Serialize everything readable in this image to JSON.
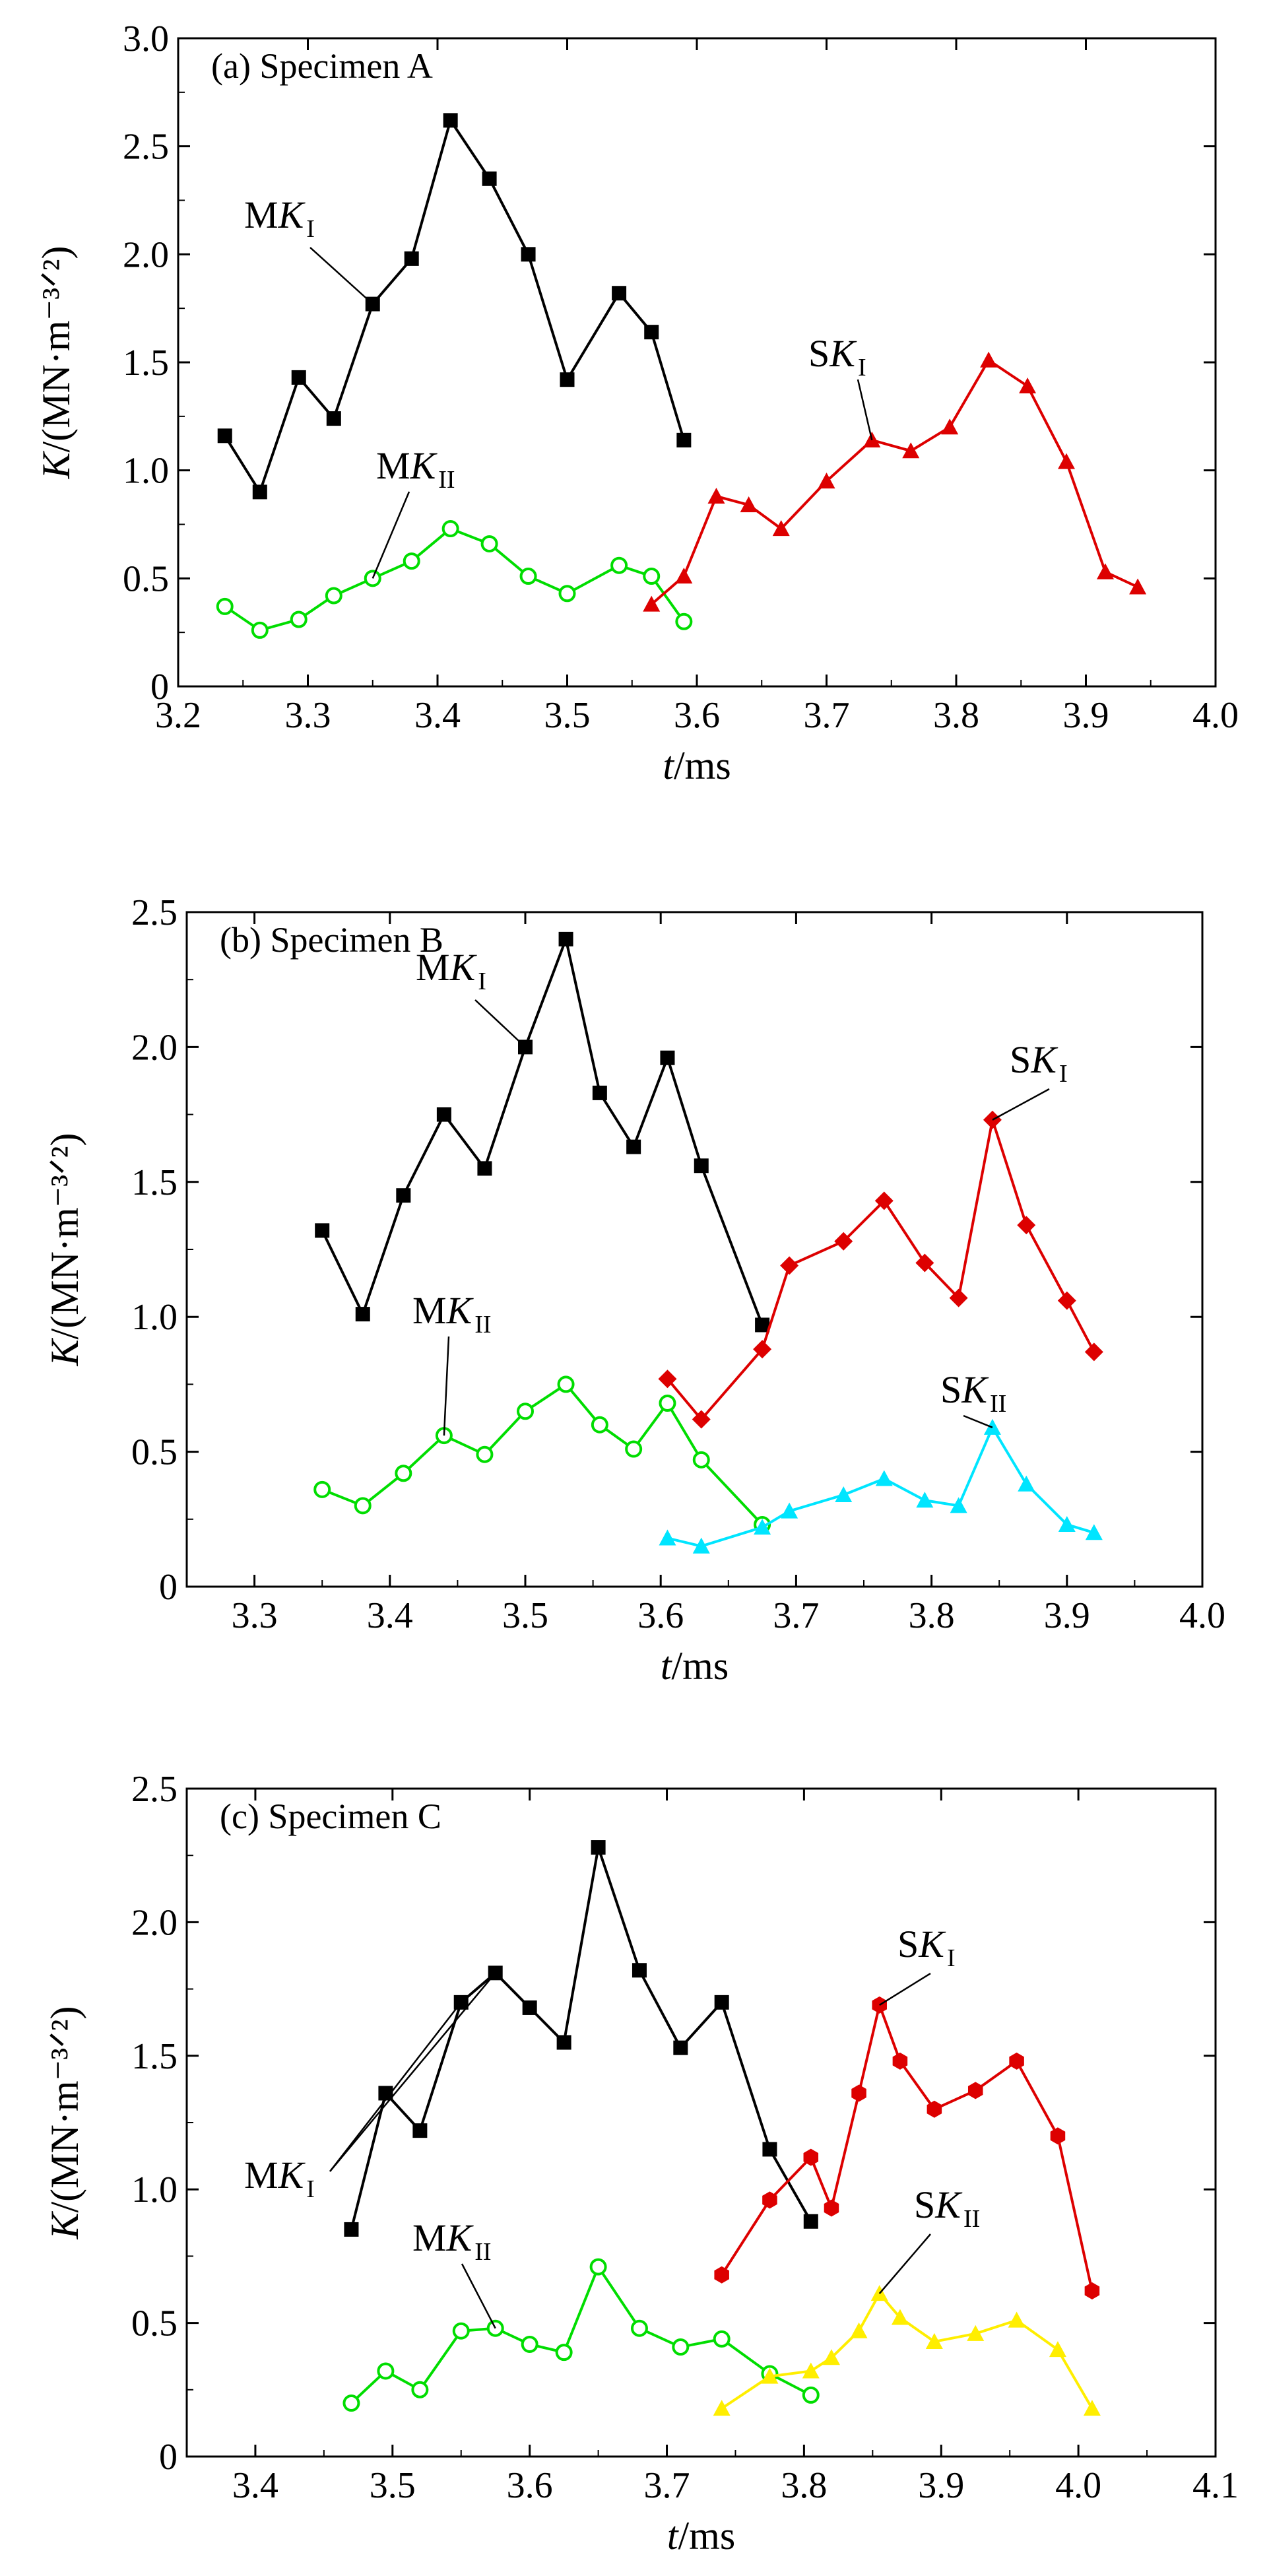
{
  "chart_data": [
    {
      "type": "line",
      "title": "(a) Specimen A",
      "xlabel": "t/ms",
      "ylabel": "K/(MN·m⁻³ᐟ²)",
      "xlim": [
        3.2,
        4.0
      ],
      "ylim": [
        0,
        3.0
      ],
      "xticks": [
        "3.2",
        "3.3",
        "3.4",
        "3.5",
        "3.6",
        "3.7",
        "3.8",
        "3.9",
        "4.0"
      ],
      "yticks": [
        "0",
        "0.5",
        "1.0",
        "1.5",
        "2.0",
        "2.5",
        "3.0"
      ],
      "grid": false,
      "series": [
        {
          "name": "MKI",
          "label_main": "MK",
          "label_sub": "I",
          "color": "#000000",
          "marker": "square",
          "x": [
            3.236,
            3.263,
            3.293,
            3.32,
            3.35,
            3.38,
            3.41,
            3.44,
            3.47,
            3.5,
            3.54,
            3.565,
            3.59
          ],
          "y": [
            1.16,
            0.9,
            1.43,
            1.24,
            1.77,
            1.98,
            2.62,
            2.35,
            2.0,
            1.42,
            1.82,
            1.64,
            1.14
          ]
        },
        {
          "name": "MKII",
          "label_main": "MK",
          "label_sub": "II",
          "color": "#00dd00",
          "marker": "open-circle",
          "x": [
            3.236,
            3.263,
            3.293,
            3.32,
            3.35,
            3.38,
            3.41,
            3.44,
            3.47,
            3.5,
            3.54,
            3.565,
            3.59
          ],
          "y": [
            0.37,
            0.26,
            0.31,
            0.42,
            0.5,
            0.58,
            0.73,
            0.66,
            0.51,
            0.43,
            0.56,
            0.51,
            0.3
          ]
        },
        {
          "name": "SKI",
          "label_main": "SK",
          "label_sub": "I",
          "color": "#dd0000",
          "marker": "triangle",
          "x": [
            3.565,
            3.59,
            3.615,
            3.64,
            3.665,
            3.7,
            3.735,
            3.765,
            3.795,
            3.825,
            3.855,
            3.885,
            3.915,
            3.94
          ],
          "y": [
            0.38,
            0.51,
            0.88,
            0.84,
            0.73,
            0.95,
            1.14,
            1.09,
            1.2,
            1.51,
            1.39,
            1.04,
            0.53,
            0.46
          ]
        }
      ]
    },
    {
      "type": "line",
      "title": "(b) Specimen B",
      "xlabel": "t/ms",
      "ylabel": "K/(MN·m⁻³ᐟ²)",
      "xlim": [
        3.25,
        4.0
      ],
      "ylim": [
        0,
        2.5
      ],
      "xticks": [
        "3.3",
        "3.4",
        "3.5",
        "3.6",
        "3.7",
        "3.8",
        "3.9",
        "4.0"
      ],
      "yticks": [
        "0",
        "0.5",
        "1.0",
        "1.5",
        "2.0",
        "2.5"
      ],
      "grid": false,
      "series": [
        {
          "name": "MKI",
          "label_main": "MK",
          "label_sub": "I",
          "color": "#000000",
          "marker": "square",
          "x": [
            3.35,
            3.38,
            3.41,
            3.44,
            3.47,
            3.5,
            3.53,
            3.555,
            3.58,
            3.605,
            3.63,
            3.675
          ],
          "y": [
            1.32,
            1.01,
            1.45,
            1.75,
            1.55,
            2.0,
            2.4,
            1.83,
            1.63,
            1.96,
            1.56,
            0.97
          ]
        },
        {
          "name": "MKII",
          "label_main": "MK",
          "label_sub": "II",
          "color": "#00dd00",
          "marker": "open-circle",
          "x": [
            3.35,
            3.38,
            3.41,
            3.44,
            3.47,
            3.5,
            3.53,
            3.555,
            3.58,
            3.605,
            3.63,
            3.675
          ],
          "y": [
            0.36,
            0.3,
            0.42,
            0.56,
            0.49,
            0.65,
            0.75,
            0.6,
            0.51,
            0.68,
            0.47,
            0.23
          ]
        },
        {
          "name": "SKI",
          "label_main": "SK",
          "label_sub": "I",
          "color": "#dd0000",
          "marker": "diamond",
          "x": [
            3.605,
            3.63,
            3.675,
            3.695,
            3.735,
            3.765,
            3.795,
            3.82,
            3.845,
            3.87,
            3.9,
            3.92
          ],
          "y": [
            0.77,
            0.62,
            0.88,
            1.19,
            1.28,
            1.43,
            1.2,
            1.07,
            1.73,
            1.34,
            1.06,
            0.87
          ]
        },
        {
          "name": "SKII",
          "label_main": "SK",
          "label_sub": "II",
          "color": "#00e5ff",
          "marker": "triangle",
          "x": [
            3.605,
            3.63,
            3.675,
            3.695,
            3.735,
            3.765,
            3.795,
            3.82,
            3.845,
            3.87,
            3.9,
            3.92
          ],
          "y": [
            0.18,
            0.15,
            0.22,
            0.28,
            0.34,
            0.4,
            0.32,
            0.3,
            0.59,
            0.38,
            0.23,
            0.2
          ]
        }
      ]
    },
    {
      "type": "line",
      "title": "(c) Specimen C",
      "xlabel": "t/ms",
      "ylabel": "K/(MN·m⁻³ᐟ²)",
      "xlim": [
        3.35,
        4.1
      ],
      "ylim": [
        0,
        2.5
      ],
      "xticks": [
        "3.4",
        "3.5",
        "3.6",
        "3.7",
        "3.8",
        "3.9",
        "4.0",
        "4.1"
      ],
      "yticks": [
        "0",
        "0.5",
        "1.0",
        "1.5",
        "2.0",
        "2.5"
      ],
      "grid": false,
      "series": [
        {
          "name": "MKI",
          "label_main": "MK",
          "label_sub": "I",
          "color": "#000000",
          "marker": "square",
          "x": [
            3.47,
            3.495,
            3.52,
            3.55,
            3.575,
            3.6,
            3.625,
            3.65,
            3.68,
            3.71,
            3.74,
            3.775,
            3.805
          ],
          "y": [
            0.85,
            1.36,
            1.22,
            1.7,
            1.81,
            1.68,
            1.55,
            2.28,
            1.82,
            1.53,
            1.7,
            1.15,
            0.88
          ]
        },
        {
          "name": "MKII",
          "label_main": "MK",
          "label_sub": "II",
          "color": "#00dd00",
          "marker": "open-circle",
          "x": [
            3.47,
            3.495,
            3.52,
            3.55,
            3.575,
            3.6,
            3.625,
            3.65,
            3.68,
            3.71,
            3.74,
            3.775,
            3.805
          ],
          "y": [
            0.2,
            0.32,
            0.25,
            0.47,
            0.48,
            0.42,
            0.39,
            0.71,
            0.48,
            0.41,
            0.44,
            0.31,
            0.23
          ]
        },
        {
          "name": "SKI",
          "label_main": "SK",
          "label_sub": "I",
          "color": "#dd0000",
          "marker": "hexagon",
          "x": [
            3.74,
            3.775,
            3.805,
            3.82,
            3.84,
            3.855,
            3.87,
            3.895,
            3.925,
            3.955,
            3.985,
            4.01
          ],
          "y": [
            0.68,
            0.96,
            1.12,
            0.93,
            1.36,
            1.69,
            1.48,
            1.3,
            1.37,
            1.48,
            1.2,
            0.62
          ]
        },
        {
          "name": "SKII",
          "label_main": "SK",
          "label_sub": "II",
          "color": "#ffee00",
          "marker": "triangle",
          "x": [
            3.74,
            3.775,
            3.805,
            3.82,
            3.84,
            3.855,
            3.87,
            3.895,
            3.925,
            3.955,
            3.985,
            4.01
          ],
          "y": [
            0.18,
            0.3,
            0.32,
            0.37,
            0.47,
            0.61,
            0.52,
            0.43,
            0.46,
            0.51,
            0.4,
            0.18
          ]
        }
      ]
    }
  ]
}
